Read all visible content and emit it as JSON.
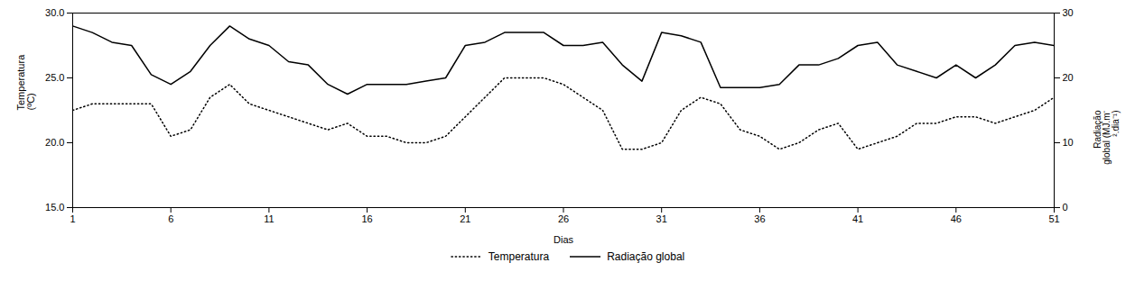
{
  "chart_data": {
    "type": "line",
    "xlabel": "Dias",
    "ylabel": "Temperatura\n(ºC)",
    "y2label": "Radiação\nglobal (MJ.m⁻\n².dia⁻¹)",
    "x": [
      1,
      2,
      3,
      4,
      5,
      6,
      7,
      8,
      9,
      10,
      11,
      12,
      13,
      14,
      15,
      16,
      17,
      18,
      19,
      20,
      21,
      22,
      23,
      24,
      25,
      26,
      27,
      28,
      29,
      30,
      31,
      32,
      33,
      34,
      35,
      36,
      37,
      38,
      39,
      40,
      41,
      42,
      43,
      44,
      45,
      46,
      47,
      48,
      49,
      50,
      51
    ],
    "series": [
      {
        "name": "Temperatura",
        "color": "#000000",
        "line_style": "dotted",
        "values": [
          22.5,
          23,
          23,
          23,
          23,
          20.5,
          21,
          23.5,
          24.5,
          23,
          22.5,
          22,
          21.5,
          21,
          21.5,
          20.5,
          20.5,
          20,
          20,
          20.5,
          22,
          23.5,
          25,
          25,
          25,
          24.5,
          23.5,
          22.5,
          19.5,
          19.5,
          20,
          22.5,
          23.5,
          23,
          21,
          20.5,
          19.5,
          20,
          21,
          21.5,
          19.5,
          20,
          20.5,
          21.5,
          21.5,
          22,
          22,
          21.5,
          22,
          22.5,
          23.5
        ]
      },
      {
        "name": "Radiação global",
        "color": "#000000",
        "line_style": "solid",
        "axis": "y2",
        "values": [
          28,
          27,
          25.5,
          25,
          20.5,
          19,
          21,
          25,
          28,
          26,
          25,
          22.5,
          22,
          19,
          17.5,
          19,
          19,
          19,
          19.5,
          20,
          25,
          25.5,
          27,
          27,
          27,
          25,
          25,
          25.5,
          22,
          19.5,
          27,
          26.5,
          25.5,
          18.5,
          18.5,
          18.5,
          19,
          22,
          22,
          23,
          25,
          25.5,
          22,
          21,
          20,
          22,
          20,
          22,
          25,
          25.5,
          25
        ]
      }
    ],
    "xlim": [
      1,
      51
    ],
    "xticks": [
      1,
      6,
      11,
      16,
      21,
      26,
      31,
      36,
      41,
      46,
      51
    ],
    "ylim": [
      15,
      30
    ],
    "yticks": [
      {
        "value": 15,
        "label": "15.0"
      },
      {
        "value": 20,
        "label": "20.0"
      },
      {
        "value": 25,
        "label": "25.0"
      },
      {
        "value": 30,
        "label": "30.0"
      }
    ],
    "y2lim": [
      0,
      30
    ],
    "y2ticks": [
      0,
      10,
      20,
      30
    ],
    "grid": false,
    "legend": "bottom"
  }
}
